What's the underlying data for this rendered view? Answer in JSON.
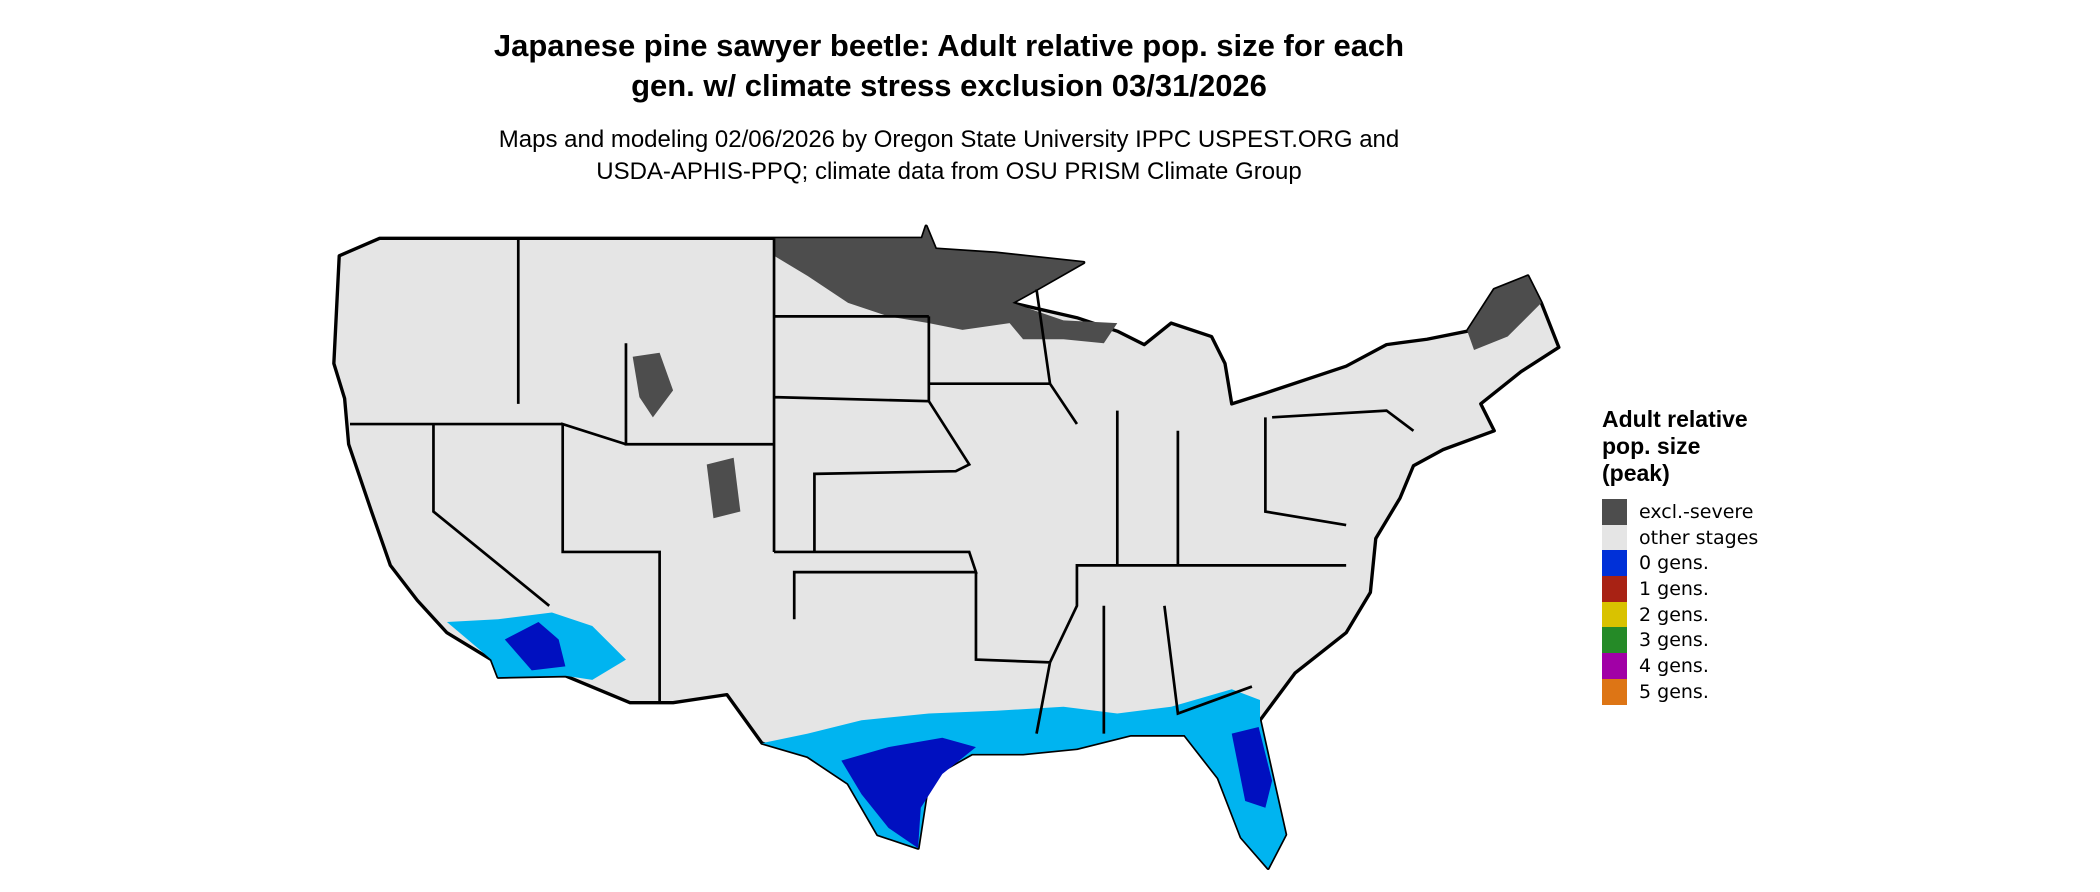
{
  "title": "Japanese pine sawyer beetle: Adult relative pop. size for each gen. w/ climate stress exclusion 03/31/2026",
  "title_lines": [
    "Japanese pine sawyer beetle: Adult relative pop. size for each",
    "gen. w/ climate stress exclusion 03/31/2026"
  ],
  "subtitle_lines": [
    "Maps and modeling 02/06/2026 by Oregon State University IPPC USPEST.ORG and",
    "USDA-APHIS-PPQ; climate data from OSU PRISM Climate Group"
  ],
  "legend": {
    "title_lines": [
      "Adult relative",
      "pop. size",
      "(peak)"
    ],
    "items": [
      {
        "label": "excl.-severe",
        "color": "#4d4d4d"
      },
      {
        "label": "other stages",
        "color": "#e5e5e5"
      },
      {
        "label": "0 gens.",
        "color": "#0030d8"
      },
      {
        "label": "1 gens.",
        "color": "#a82214"
      },
      {
        "label": "2 gens.",
        "color": "#d9c200"
      },
      {
        "label": "3 gens.",
        "color": "#258a27"
      },
      {
        "label": "4 gens.",
        "color": "#a100a6"
      },
      {
        "label": "5 gens.",
        "color": "#dd7515"
      }
    ]
  },
  "map_colors": {
    "base": "#e5e5e5",
    "excluded": "#4d4d4d",
    "light_blue": "#00b4f0",
    "dark_blue": "#0010c0",
    "border": "#000000"
  }
}
